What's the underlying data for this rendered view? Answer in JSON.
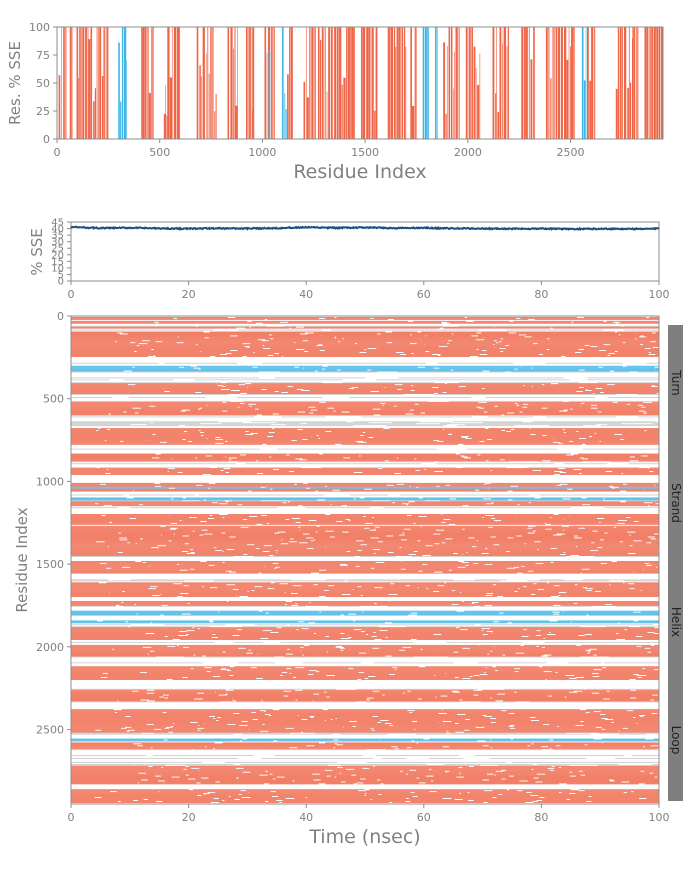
{
  "chart_data": [
    {
      "type": "bar",
      "id": "residue-sse-profile",
      "title": "",
      "xlabel": "Residue Index",
      "ylabel": "Res. % SSE",
      "xlim": [
        0,
        2950
      ],
      "ylim": [
        0,
        100
      ],
      "xticks": [
        "0",
        "500",
        "1000",
        "1500",
        "2000",
        "2500"
      ],
      "yticks": [
        "0",
        "25",
        "50",
        "75",
        "100"
      ],
      "series": [
        {
          "name": "Strand",
          "color": "#ef6548",
          "segments": [
            [
              8,
              22
            ],
            [
              30,
              45
            ],
            [
              62,
              75
            ],
            [
              95,
              250
            ],
            [
              410,
              470
            ],
            [
              520,
              600
            ],
            [
              680,
              780
            ],
            [
              830,
              880
            ],
            [
              920,
              960
            ],
            [
              1010,
              1060
            ],
            [
              1120,
              1150
            ],
            [
              1200,
              1260
            ],
            [
              1270,
              1450
            ],
            [
              1480,
              1560
            ],
            [
              1610,
              1700
            ],
            [
              1720,
              1750
            ],
            [
              1880,
              1960
            ],
            [
              1990,
              2060
            ],
            [
              2120,
              2200
            ],
            [
              2260,
              2330
            ],
            [
              2380,
              2520
            ],
            [
              2580,
              2620
            ],
            [
              2720,
              2830
            ],
            [
              2860,
              2950
            ]
          ]
        },
        {
          "name": "Helix",
          "color": "#41b6e6",
          "segments": [
            [
              298,
              338
            ],
            [
              1030,
              1045
            ],
            [
              1095,
              1118
            ],
            [
              1780,
              1810
            ],
            [
              1840,
              1858
            ],
            [
              2555,
              2575
            ]
          ]
        }
      ],
      "series_value": 100
    },
    {
      "type": "line",
      "id": "sse-percent-over-time",
      "title": "",
      "xlabel": "",
      "ylabel": "% SSE",
      "xlim": [
        0,
        100
      ],
      "ylim": [
        0,
        45
      ],
      "xticks": [
        "0",
        "20",
        "40",
        "60",
        "80",
        "100"
      ],
      "yticks": [
        "0",
        "5",
        "10",
        "15",
        "20",
        "25",
        "30",
        "35",
        "40",
        "45"
      ],
      "series": [
        {
          "name": "% SSE",
          "color": "#1b4f80",
          "x": [
            0,
            5,
            10,
            15,
            20,
            25,
            30,
            35,
            40,
            45,
            50,
            55,
            60,
            65,
            70,
            75,
            80,
            85,
            90,
            95,
            100
          ],
          "y": [
            41.2,
            40.3,
            40.6,
            40.1,
            39.9,
            40.2,
            40.0,
            40.4,
            40.9,
            40.5,
            40.8,
            40.3,
            40.5,
            40.1,
            40.0,
            39.8,
            40.0,
            39.6,
            39.9,
            39.7,
            39.9
          ]
        }
      ]
    },
    {
      "type": "heatmap",
      "id": "sse-timeline",
      "title": "",
      "xlabel": "Time (nsec)",
      "ylabel": "Residue Index",
      "xlim": [
        0,
        100
      ],
      "ylim": [
        2950,
        0
      ],
      "xticks": [
        "0",
        "20",
        "40",
        "60",
        "80",
        "100"
      ],
      "yticks": [
        "0",
        "500",
        "1000",
        "1500",
        "2000",
        "2500"
      ],
      "legend": [
        "Turn",
        "Strand",
        "Helix",
        "Loop"
      ],
      "legend_position": "right",
      "series": [
        {
          "name": "Strand",
          "color": "#ef6548"
        },
        {
          "name": "Helix",
          "color": "#41b6e6"
        },
        {
          "name": "Turn",
          "color": "#b0b0b0"
        }
      ]
    }
  ],
  "colors": {
    "strand": "#ef6548",
    "helix": "#41b6e6",
    "line": "#1b4f80",
    "axis_text": "#808080",
    "legend_bar": "#7f7f7f"
  }
}
